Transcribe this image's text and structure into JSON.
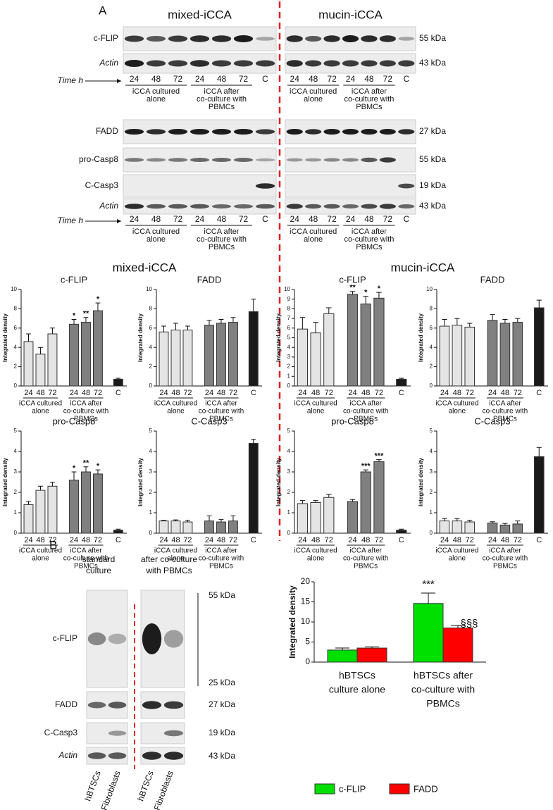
{
  "panel_a": {
    "label": "A",
    "sections": [
      "mixed-iCCA",
      "mucin-iCCA"
    ],
    "set_1": {
      "rows": [
        "c-FLIP",
        "Actin"
      ],
      "sizes": [
        "55 kDa",
        "43 kDa"
      ]
    },
    "set_2": {
      "rows": [
        "FADD",
        "pro-Casp8",
        "C-Casp3",
        "Actin"
      ],
      "sizes": [
        "27 kDa",
        "55 kDa",
        "19 kDa",
        "43 kDa"
      ]
    },
    "time_label": "Time h",
    "lanes": [
      "24",
      "48",
      "72",
      "24",
      "48",
      "72",
      "C"
    ],
    "lane_groups": [
      [
        "iCCA cultured",
        "alone"
      ],
      [
        "iCCA after",
        "co-culture with",
        "PBMCs"
      ]
    ]
  },
  "panel_b": {
    "label": "B",
    "columns": [
      [
        "standard",
        "culture"
      ],
      [
        "after co-culture",
        "with PBMCs"
      ]
    ],
    "rows": [
      "c-FLIP",
      "FADD",
      "C-Casp3",
      "Actin"
    ],
    "sizes": [
      "55 kDa",
      "25 kDa",
      "27 kDa",
      "19 kDa",
      "43 kDa"
    ],
    "lanes": [
      "hBTSCs",
      "Fibroblasts"
    ]
  },
  "chart_data": [
    {
      "type": "bar",
      "title": "c-FLIP",
      "ylabel": "Integrated density",
      "categories": [
        "24",
        "48",
        "72",
        "24",
        "48",
        "72",
        "C"
      ],
      "values": [
        4.6,
        3.3,
        5.4,
        6.4,
        6.6,
        7.8,
        0.7
      ],
      "errors": [
        0.8,
        0.7,
        0.6,
        0.5,
        0.5,
        0.8,
        0.1
      ],
      "annotations": [
        null,
        null,
        null,
        "*",
        "**",
        "*",
        null
      ],
      "colors": [
        "#e4e4e4",
        "#e4e4e4",
        "#e4e4e4",
        "#808080",
        "#808080",
        "#808080",
        "#1a1a1a"
      ],
      "groups": [
        [
          "iCCA cultured",
          "alone"
        ],
        [
          "iCCA after",
          "co-culture with",
          "PBMCs"
        ]
      ],
      "ylim": [
        0,
        10
      ],
      "yticks": [
        0,
        2,
        4,
        6,
        8,
        10
      ]
    },
    {
      "type": "bar",
      "title": "FADD",
      "ylabel": "Integrated density",
      "categories": [
        "24",
        "48",
        "72",
        "24",
        "48",
        "72",
        "C"
      ],
      "values": [
        5.6,
        5.8,
        5.8,
        6.3,
        6.5,
        6.6,
        7.7
      ],
      "errors": [
        0.6,
        0.7,
        0.4,
        0.5,
        0.4,
        0.5,
        1.3
      ],
      "colors": [
        "#e4e4e4",
        "#e4e4e4",
        "#e4e4e4",
        "#808080",
        "#808080",
        "#808080",
        "#1a1a1a"
      ],
      "groups": [
        [
          "iCCA cultured",
          "alone"
        ],
        [
          "iCCA after",
          "co-culture with",
          "PBMCs"
        ]
      ],
      "ylim": [
        0,
        10
      ],
      "yticks": [
        0,
        2,
        4,
        6,
        8,
        10
      ]
    },
    {
      "type": "bar",
      "title": "c-FLIP",
      "ylabel": "Integrated density",
      "categories": [
        "24",
        "48",
        "72",
        "24",
        "48",
        "72",
        "C"
      ],
      "values": [
        5.9,
        5.5,
        7.5,
        9.5,
        8.5,
        9.1,
        0.7
      ],
      "errors": [
        1.2,
        1.1,
        0.6,
        0.3,
        0.8,
        0.6,
        0.1
      ],
      "annotations": [
        null,
        null,
        null,
        "**",
        "*",
        "*",
        null
      ],
      "colors": [
        "#e4e4e4",
        "#e4e4e4",
        "#e4e4e4",
        "#808080",
        "#808080",
        "#808080",
        "#1a1a1a"
      ],
      "groups": [
        [
          "iCCA cultured",
          "alone"
        ],
        [
          "iCCA after",
          "co-culture with",
          "PBMCs"
        ]
      ],
      "ylim": [
        0,
        10
      ],
      "yticks": [
        0,
        1,
        2,
        3,
        4,
        5,
        6,
        7,
        8,
        9,
        10
      ]
    },
    {
      "type": "bar",
      "title": "FADD",
      "ylabel": "Integrated density",
      "categories": [
        "24",
        "48",
        "72",
        "24",
        "48",
        "72",
        "C"
      ],
      "values": [
        6.2,
        6.3,
        6.1,
        6.8,
        6.5,
        6.6,
        8.1
      ],
      "errors": [
        0.7,
        0.7,
        0.4,
        0.6,
        0.4,
        0.4,
        0.8
      ],
      "colors": [
        "#e4e4e4",
        "#e4e4e4",
        "#e4e4e4",
        "#808080",
        "#808080",
        "#808080",
        "#1a1a1a"
      ],
      "groups": [
        [
          "iCCA cultured",
          "alone"
        ],
        [
          "iCCA after",
          "co-culture with",
          "PBMCs"
        ]
      ],
      "ylim": [
        0,
        10
      ],
      "yticks": [
        0,
        2,
        4,
        6,
        8,
        10
      ]
    },
    {
      "type": "bar",
      "title": "pro-Casp8",
      "ylabel": "Integrated density",
      "categories": [
        "24",
        "48",
        "72",
        "24",
        "48",
        "72",
        "C"
      ],
      "values": [
        1.4,
        2.1,
        2.3,
        2.6,
        3.0,
        2.9,
        0.15
      ],
      "errors": [
        0.15,
        0.2,
        0.2,
        0.4,
        0.25,
        0.2,
        0.05
      ],
      "annotations": [
        null,
        null,
        null,
        "*",
        "**",
        "*",
        null
      ],
      "colors": [
        "#e4e4e4",
        "#e4e4e4",
        "#e4e4e4",
        "#808080",
        "#808080",
        "#808080",
        "#1a1a1a"
      ],
      "groups": [
        [
          "iCCA cultured",
          "alone"
        ],
        [
          "iCCA after",
          "co-culture with",
          "PBMCs"
        ]
      ],
      "ylim": [
        0,
        5
      ],
      "yticks": [
        0,
        1,
        2,
        3,
        4,
        5
      ]
    },
    {
      "type": "bar",
      "title": "C-Casp3",
      "ylabel": "Integrated density",
      "categories": [
        "24",
        "48",
        "72",
        "24",
        "48",
        "72",
        "C"
      ],
      "values": [
        0.6,
        0.6,
        0.55,
        0.6,
        0.55,
        0.6,
        4.4
      ],
      "errors": [
        0.03,
        0.05,
        0.08,
        0.25,
        0.12,
        0.25,
        0.2
      ],
      "colors": [
        "#e4e4e4",
        "#e4e4e4",
        "#e4e4e4",
        "#808080",
        "#808080",
        "#808080",
        "#1a1a1a"
      ],
      "groups": [
        [
          "iCCA cultured",
          "alone"
        ],
        [
          "iCCA after",
          "co-culture with",
          "PBMCs"
        ]
      ],
      "ylim": [
        0,
        5
      ],
      "yticks": [
        0,
        1,
        2,
        3,
        4,
        5
      ]
    },
    {
      "type": "bar",
      "title": "pro-Casp8",
      "ylabel": "Integrated density",
      "categories": [
        "24",
        "48",
        "72",
        "24",
        "48",
        "72",
        "C"
      ],
      "values": [
        1.45,
        1.5,
        1.75,
        1.55,
        3.0,
        3.5,
        0.15
      ],
      "errors": [
        0.15,
        0.1,
        0.15,
        0.1,
        0.1,
        0.1,
        0.05
      ],
      "annotations": [
        null,
        null,
        null,
        null,
        "***",
        "***",
        null
      ],
      "colors": [
        "#e4e4e4",
        "#e4e4e4",
        "#e4e4e4",
        "#808080",
        "#808080",
        "#808080",
        "#1a1a1a"
      ],
      "groups": [
        [
          "iCCA cultured",
          "alone"
        ],
        [
          "iCCA after",
          "co-culture with",
          "PBMCs"
        ]
      ],
      "ylim": [
        0,
        5
      ],
      "yticks": [
        0,
        1,
        2,
        3,
        4,
        5
      ]
    },
    {
      "type": "bar",
      "title": "C-Casp3",
      "ylabel": "Integrated density",
      "categories": [
        "24",
        "48",
        "72",
        "24",
        "48",
        "72",
        "C"
      ],
      "values": [
        0.6,
        0.6,
        0.55,
        0.5,
        0.4,
        0.45,
        3.75
      ],
      "errors": [
        0.12,
        0.12,
        0.08,
        0.06,
        0.08,
        0.15,
        0.45
      ],
      "colors": [
        "#e4e4e4",
        "#e4e4e4",
        "#e4e4e4",
        "#808080",
        "#808080",
        "#808080",
        "#1a1a1a"
      ],
      "groups": [
        [
          "iCCA cultured",
          "alone"
        ],
        [
          "iCCA after",
          "co-culture with",
          "PBMCs"
        ]
      ],
      "ylim": [
        0,
        5
      ],
      "yticks": [
        0,
        1,
        2,
        3,
        4,
        5
      ]
    },
    {
      "type": "grouped_bar",
      "ylabel": "Integrated density",
      "categories": [
        [
          "hBTSCs",
          "culture alone"
        ],
        [
          "hBTSCs after",
          "co-culture with",
          "PBMCs"
        ]
      ],
      "series": [
        {
          "name": "c-FLIP",
          "color": "#00e000",
          "values": [
            3.0,
            14.6
          ],
          "errors": [
            0.5,
            2.6
          ],
          "annotations": [
            null,
            "***"
          ]
        },
        {
          "name": "FADD",
          "color": "#ff0000",
          "values": [
            3.5,
            8.5
          ],
          "errors": [
            0.3,
            0.6
          ],
          "annotations": [
            null,
            "§§§"
          ]
        }
      ],
      "ylim": [
        0,
        20
      ],
      "yticks": [
        0,
        5,
        10,
        15,
        20
      ],
      "legend": "bottom"
    }
  ]
}
